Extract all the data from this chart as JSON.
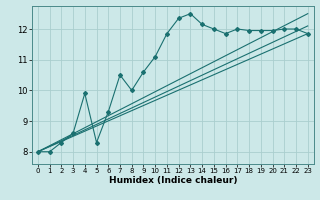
{
  "xlabel": "Humidex (Indice chaleur)",
  "bg_color": "#cce8e8",
  "grid_color": "#aacece",
  "line_color": "#1a7070",
  "xlim": [
    -0.5,
    23.5
  ],
  "ylim": [
    7.6,
    12.75
  ],
  "xticks": [
    0,
    1,
    2,
    3,
    4,
    5,
    6,
    7,
    8,
    9,
    10,
    11,
    12,
    13,
    14,
    15,
    16,
    17,
    18,
    19,
    20,
    21,
    22,
    23
  ],
  "yticks": [
    8,
    9,
    10,
    11,
    12
  ],
  "main_series_x": [
    0,
    1,
    2,
    3,
    4,
    5,
    6,
    7,
    8,
    9,
    10,
    11,
    12,
    13,
    14,
    15,
    16,
    17,
    18,
    19,
    20,
    21,
    22,
    23
  ],
  "main_series_y": [
    8.0,
    8.0,
    8.3,
    8.6,
    9.9,
    8.3,
    9.3,
    10.5,
    10.0,
    10.6,
    11.1,
    11.85,
    12.35,
    12.5,
    12.15,
    12.0,
    11.85,
    12.0,
    11.95,
    11.95,
    11.95,
    12.0,
    12.0,
    11.85
  ],
  "line1_x": [
    0,
    23
  ],
  "line1_y": [
    8.0,
    12.5
  ],
  "line2_x": [
    0,
    23
  ],
  "line2_y": [
    8.0,
    11.85
  ],
  "line3_x": [
    0,
    23
  ],
  "line3_y": [
    8.0,
    12.1
  ]
}
